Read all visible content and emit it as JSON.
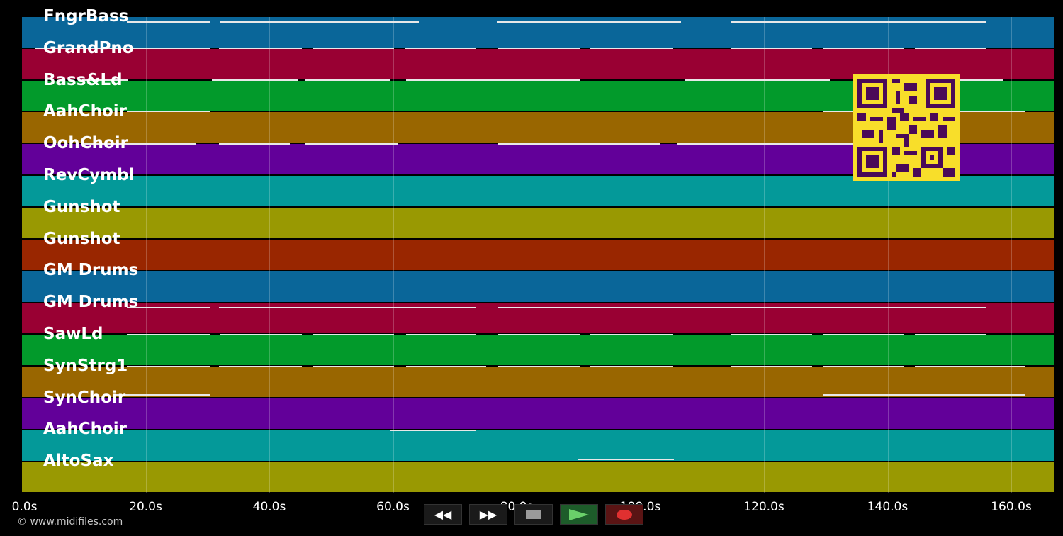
{
  "tracks": [
    {
      "name": "FngrBass",
      "color": "#0a6699"
    },
    {
      "name": "GrandPno",
      "color": "#990033"
    },
    {
      "name": "Bass&Ld",
      "color": "#029a2b"
    },
    {
      "name": "AahChoir",
      "color": "#996600"
    },
    {
      "name": "OohChoir",
      "color": "#620099"
    },
    {
      "name": "RevCymbl",
      "color": "#049999"
    },
    {
      "name": "Gunshot",
      "color": "#999902"
    },
    {
      "name": "Gunshot",
      "color": "#992600"
    },
    {
      "name": "GM Drums",
      "color": "#0a6699"
    },
    {
      "name": "GM Drums",
      "color": "#990033"
    },
    {
      "name": "SawLd",
      "color": "#029a2b"
    },
    {
      "name": "SynStrg1",
      "color": "#996600"
    },
    {
      "name": "SynChoir",
      "color": "#620099"
    },
    {
      "name": "AahChoir",
      "color": "#049999"
    },
    {
      "name": "AltoSax",
      "color": "#999902"
    }
  ],
  "timeline": {
    "ticks": [
      "0.0s",
      "20.0s",
      "40.0s",
      "60.0s",
      "80.0s",
      "100.0s",
      "120.0s",
      "140.0s",
      "160.0s"
    ]
  },
  "transport": {
    "rewind": "◀◀",
    "forward": "▶▶"
  },
  "copyright": "© www.midifiles.com"
}
